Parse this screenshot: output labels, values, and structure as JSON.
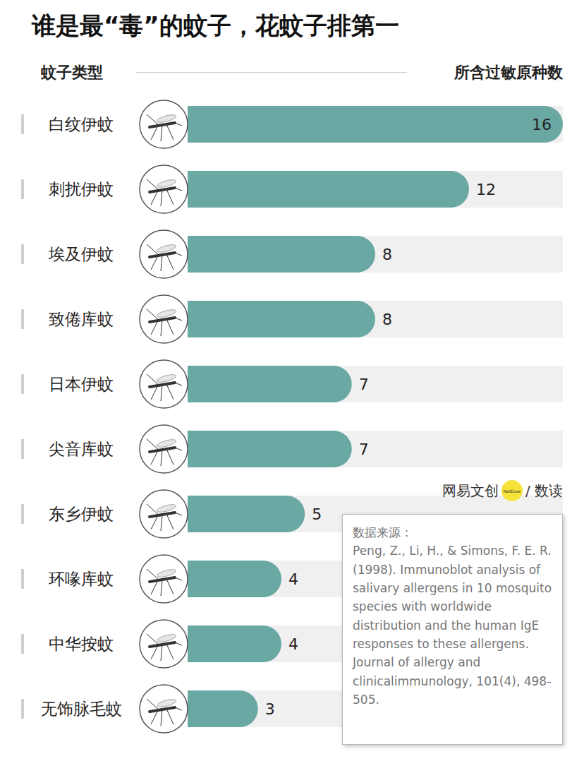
{
  "chart_data": {
    "type": "bar",
    "orientation": "horizontal",
    "title": "谁是最“毒”的蚊子，花蚊子排第一",
    "ylabel": "蚊子类型",
    "xlabel": "所含过敏原种数",
    "categories": [
      "白纹伊蚊",
      "刺扰伊蚊",
      "埃及伊蚊",
      "致倦库蚊",
      "日本伊蚊",
      "尖音库蚊",
      "东乡伊蚊",
      "环喙库蚊",
      "中华按蚊",
      "无饰脉毛蚊"
    ],
    "values": [
      16,
      12,
      8,
      8,
      7,
      7,
      5,
      4,
      4,
      3
    ],
    "color": "#6aa8a4",
    "xlim": [
      0,
      16
    ],
    "tick_labels": "y",
    "data_labels": true,
    "grid": false,
    "annotations": [
      "网易文创",
      "NetEase",
      "/ 数读",
      "数据来源：",
      "Peng, Z., Li, H., & Simons, F. E. R. (1998). Immunoblot analysis of salivary allergens in 10 mosquito species with worldwide distribution and the human IgE responses to these allergens. Journal of allergy and clinicalimmunology, 101(4), 498-505."
    ]
  }
}
